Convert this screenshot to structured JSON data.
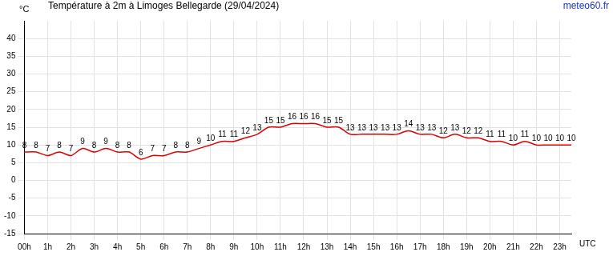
{
  "chart_data": {
    "type": "line",
    "title": "Température à 2m à Limoges Bellegarde (29/04/2024)",
    "ylabel": "°C",
    "xlabel": "UTC",
    "source": "meteo60.fr",
    "categories": [
      "00h",
      null,
      "1h",
      null,
      "2h",
      null,
      "3h",
      null,
      "4h",
      null,
      "5h",
      null,
      "6h",
      null,
      "7h",
      null,
      "8h",
      null,
      "9h",
      null,
      "10h",
      null,
      "11h",
      null,
      "12h",
      null,
      "13h",
      null,
      "14h",
      null,
      "15h",
      null,
      "16h",
      null,
      "17h",
      null,
      "18h",
      null,
      "19h",
      null,
      "20h",
      null,
      "21h",
      null,
      "22h",
      null,
      "23h",
      null
    ],
    "values": [
      8,
      8,
      7,
      8,
      7,
      9,
      8,
      9,
      8,
      8,
      6,
      7,
      7,
      8,
      8,
      9,
      10,
      11,
      11,
      12,
      13,
      15,
      15,
      16,
      16,
      16,
      15,
      15,
      13,
      13,
      13,
      13,
      13,
      14,
      13,
      13,
      12,
      13,
      12,
      12,
      11,
      11,
      10,
      11,
      10,
      10,
      10,
      10
    ],
    "color": "#dd0000",
    "ylim": [
      -15,
      45
    ],
    "yticks": [
      -15,
      -10,
      -5,
      0,
      5,
      10,
      15,
      20,
      25,
      30,
      35,
      40
    ],
    "grid": true,
    "data_labels": true
  }
}
